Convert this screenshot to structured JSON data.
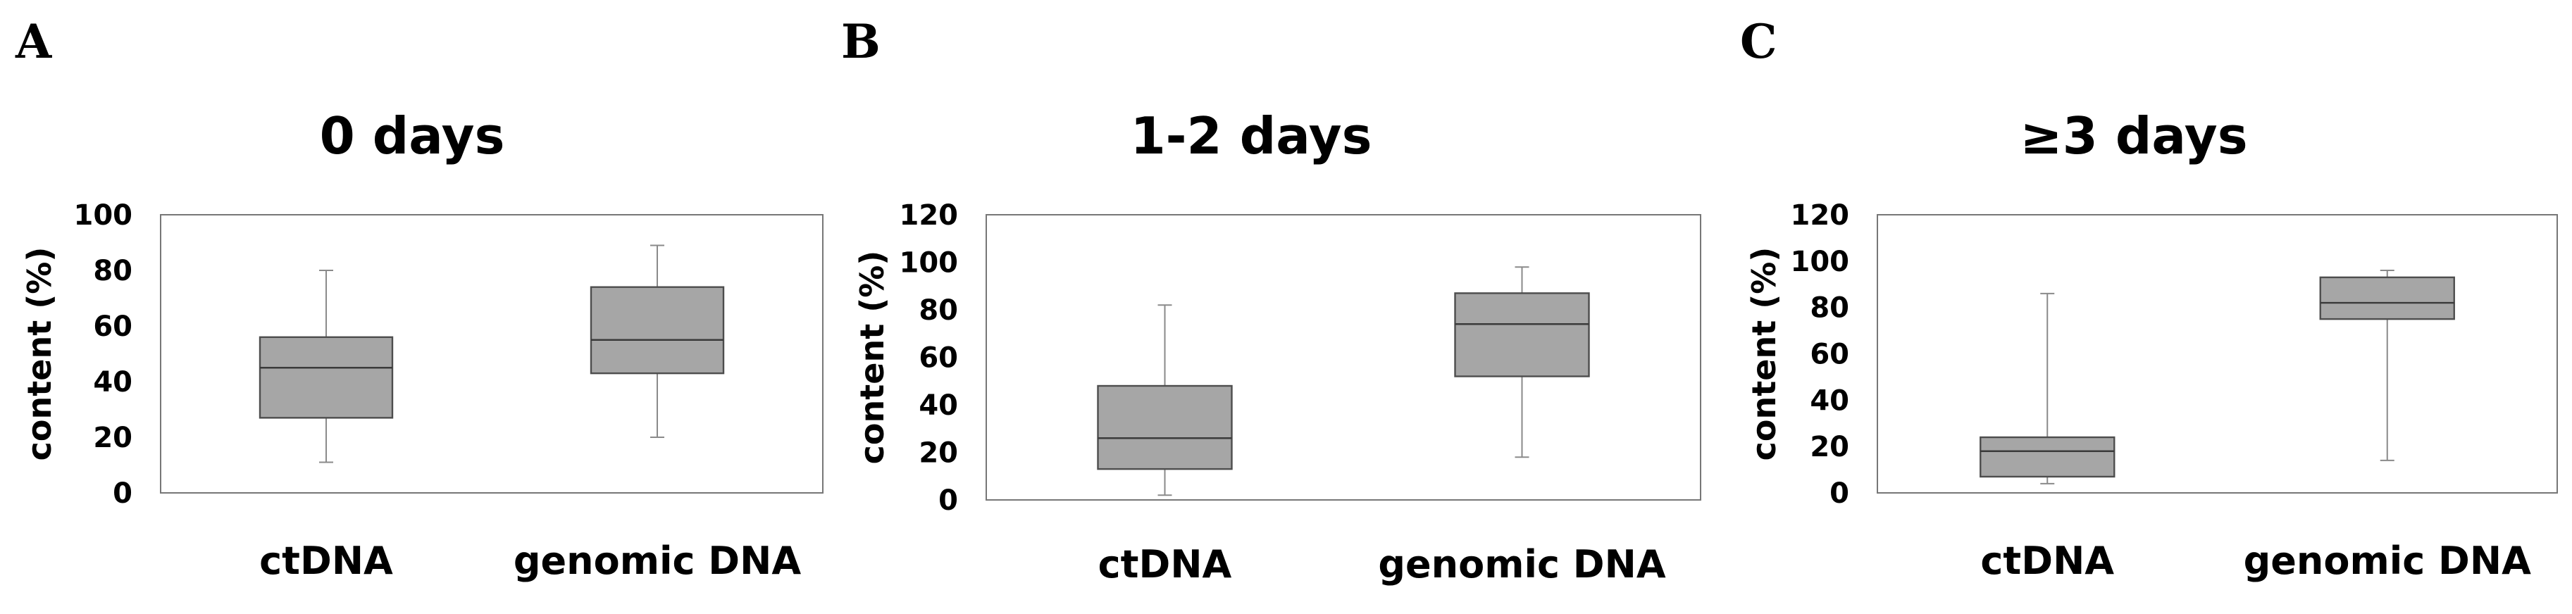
{
  "chart_data": [
    {
      "type": "boxplot",
      "panel": "A",
      "title": "0 days",
      "ylabel": "content (%)",
      "ylim": [
        0,
        100
      ],
      "yticks": [
        0,
        20,
        40,
        60,
        80,
        100
      ],
      "categories": [
        "ctDNA",
        "genomic DNA"
      ],
      "boxes": [
        {
          "min": 11,
          "q1": 27,
          "median": 45,
          "q3": 56,
          "max": 80
        },
        {
          "min": 20,
          "q1": 43,
          "median": 55,
          "q3": 74,
          "max": 89
        }
      ]
    },
    {
      "type": "boxplot",
      "panel": "B",
      "title": "1-2 days",
      "ylabel": "content (%)",
      "ylim": [
        0,
        120
      ],
      "yticks": [
        0,
        20,
        40,
        60,
        80,
        100,
        120
      ],
      "categories": [
        "ctDNA",
        "genomic DNA"
      ],
      "boxes": [
        {
          "min": 2,
          "q1": 13,
          "median": 26,
          "q3": 48,
          "max": 82
        },
        {
          "min": 18,
          "q1": 52,
          "median": 74,
          "q3": 87,
          "max": 98
        }
      ]
    },
    {
      "type": "boxplot",
      "panel": "C",
      "title": "≥3 days",
      "ylabel": "content (%)",
      "ylim": [
        0,
        120
      ],
      "yticks": [
        0,
        20,
        40,
        60,
        80,
        100,
        120
      ],
      "categories": [
        "ctDNA",
        "genomic DNA"
      ],
      "boxes": [
        {
          "min": 4,
          "q1": 7,
          "median": 18,
          "q3": 24,
          "max": 86
        },
        {
          "min": 14,
          "q1": 75,
          "median": 82,
          "q3": 93,
          "max": 96
        }
      ]
    }
  ]
}
